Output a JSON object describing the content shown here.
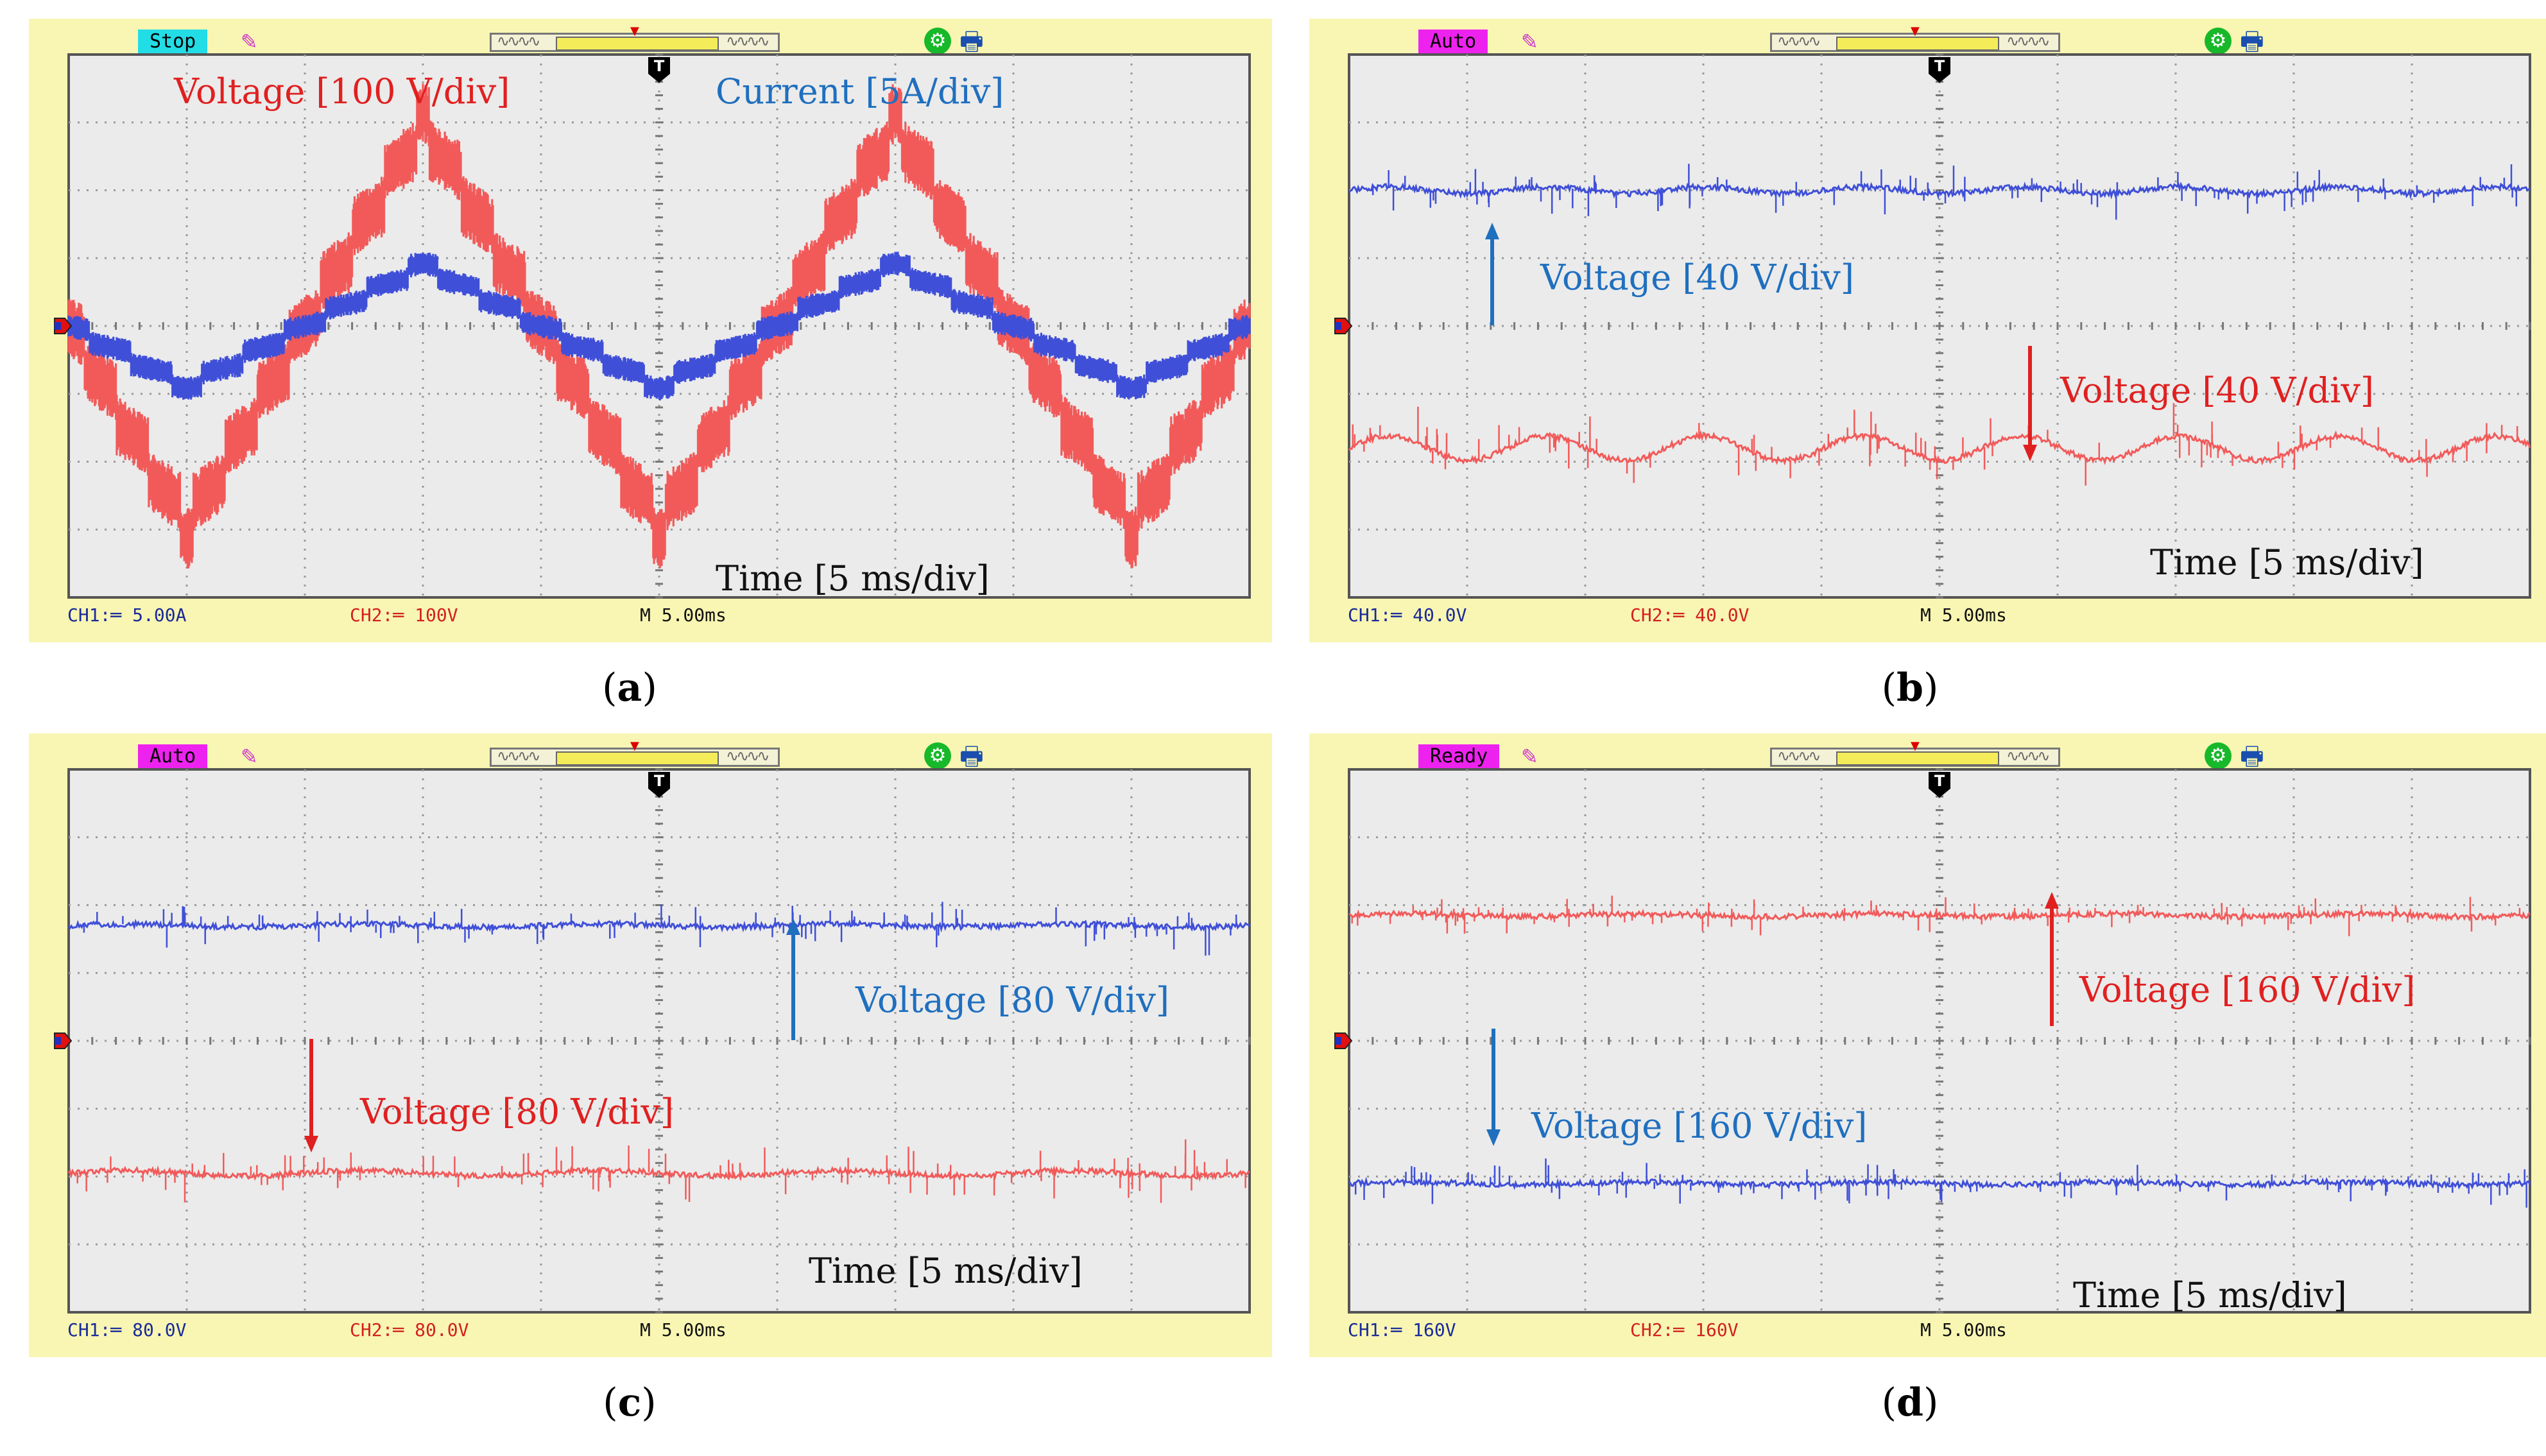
{
  "colors": {
    "ch1": "#3f4fd8",
    "ch2": "#f25a5a",
    "grid": "#9a9a9a",
    "panel_bg": "#f8f6b2",
    "screen_bg": "#ebebeb",
    "annotation_red": "#e02020",
    "annotation_blue": "#1f6fbf"
  },
  "chart_data": [
    {
      "type": "line",
      "panel_label": "a",
      "status": "Stop",
      "status_color": "#22dde6",
      "channels": {
        "ch1": "CH1:═ 5.00A",
        "ch2": "CH2:═ 100V",
        "timebase": "M 5.00ms"
      },
      "annotations": {
        "red": "Voltage [100 V/div]",
        "blue": "Current [5A/div]",
        "time": "Time [5 ms/div]"
      },
      "x": {
        "divisions": 10,
        "range_ms": [
          0,
          50
        ],
        "unit": "ms"
      },
      "y": {
        "divisions": 8,
        "range_div": [
          -4,
          4
        ]
      },
      "series": [
        {
          "name": "Voltage",
          "channel": "CH2",
          "color": "#f25a5a",
          "scale": "100 V/div",
          "offset_div": 0,
          "points_div": [
            [
              0,
              0
            ],
            [
              2.5,
              -1.5
            ],
            [
              5,
              -3
            ],
            [
              7.5,
              -1.5
            ],
            [
              10,
              0
            ],
            [
              12.5,
              1.5
            ],
            [
              15,
              3
            ],
            [
              17.5,
              1.5
            ],
            [
              20,
              0
            ],
            [
              22.5,
              -1.5
            ],
            [
              25,
              -3
            ],
            [
              27.5,
              -1.5
            ],
            [
              30,
              0
            ],
            [
              32.5,
              1.5
            ],
            [
              35,
              3
            ],
            [
              37.5,
              1.5
            ],
            [
              40,
              0
            ],
            [
              42.5,
              -1.5
            ],
            [
              45,
              -3
            ],
            [
              47.5,
              -1.5
            ],
            [
              50,
              0
            ]
          ],
          "band_div": 0.9
        },
        {
          "name": "Current",
          "channel": "CH1",
          "color": "#3f4fd8",
          "scale": "5A/div",
          "offset_div": 0,
          "points_div": [
            [
              0,
              0
            ],
            [
              2.5,
              -0.45
            ],
            [
              5,
              -0.9
            ],
            [
              7.5,
              -0.45
            ],
            [
              10,
              0
            ],
            [
              12.5,
              0.45
            ],
            [
              15,
              0.9
            ],
            [
              17.5,
              0.45
            ],
            [
              20,
              0
            ],
            [
              22.5,
              -0.45
            ],
            [
              25,
              -0.9
            ],
            [
              27.5,
              -0.45
            ],
            [
              30,
              0
            ],
            [
              32.5,
              0.45
            ],
            [
              35,
              0.9
            ],
            [
              37.5,
              0.45
            ],
            [
              40,
              0
            ],
            [
              42.5,
              -0.45
            ],
            [
              45,
              -0.9
            ],
            [
              47.5,
              -0.45
            ],
            [
              50,
              0
            ]
          ],
          "band_div": 0.35
        }
      ]
    },
    {
      "type": "line",
      "panel_label": "b",
      "status": "Auto",
      "status_color": "#ee22ee",
      "channels": {
        "ch1": "CH1:═ 40.0V",
        "ch2": "CH2:═ 40.0V",
        "timebase": "M 5.00ms"
      },
      "annotations": {
        "red": "Voltage [40 V/div]",
        "blue": "Voltage [40 V/div]",
        "time": "Time [5 ms/div]"
      },
      "x": {
        "divisions": 10,
        "range_ms": [
          0,
          50
        ],
        "unit": "ms"
      },
      "y": {
        "divisions": 8,
        "range_div": [
          -4,
          4
        ]
      },
      "series": [
        {
          "name": "Voltage (upper)",
          "channel": "CH1",
          "color": "#3f4fd8",
          "scale": "40 V/div",
          "offset_div": 2.0,
          "ripple_div": 0.05,
          "ripple_period_ms": 6.7,
          "spike_div": 0.45
        },
        {
          "name": "Voltage (lower)",
          "channel": "CH2",
          "color": "#f25a5a",
          "scale": "40 V/div",
          "offset_div": -1.8,
          "ripple_div": 0.18,
          "ripple_period_ms": 6.7,
          "spike_div": 0.6
        }
      ]
    },
    {
      "type": "line",
      "panel_label": "c",
      "status": "Auto",
      "status_color": "#ee22ee",
      "channels": {
        "ch1": "CH1:═ 80.0V",
        "ch2": "CH2:═ 80.0V",
        "timebase": "M 5.00ms"
      },
      "annotations": {
        "red": "Voltage [80 V/div]",
        "blue": "Voltage [80 V/div]",
        "time": "Time [5 ms/div]"
      },
      "x": {
        "divisions": 10,
        "range_ms": [
          0,
          50
        ],
        "unit": "ms"
      },
      "y": {
        "divisions": 8,
        "range_div": [
          -4,
          4
        ]
      },
      "series": [
        {
          "name": "Voltage (upper)",
          "channel": "CH1",
          "color": "#3f4fd8",
          "scale": "80 V/div",
          "offset_div": 1.7,
          "ripple_div": 0.02,
          "ripple_period_ms": 10,
          "spike_div": 0.45
        },
        {
          "name": "Voltage (lower)",
          "channel": "CH2",
          "color": "#f25a5a",
          "scale": "80 V/div",
          "offset_div": -1.95,
          "ripple_div": 0.04,
          "ripple_period_ms": 10,
          "spike_div": 0.55
        }
      ]
    },
    {
      "type": "line",
      "panel_label": "d",
      "status": "Ready",
      "status_color": "#ee22ee",
      "channels": {
        "ch1": "CH1:═ 160V",
        "ch2": "CH2:═ 160V",
        "timebase": "M 5.00ms"
      },
      "annotations": {
        "red": "Voltage [160 V/div]",
        "blue": "Voltage [160 V/div]",
        "time": "Time [5 ms/div]"
      },
      "x": {
        "divisions": 10,
        "range_ms": [
          0,
          50
        ],
        "unit": "ms"
      },
      "y": {
        "divisions": 8,
        "range_div": [
          -4,
          4
        ]
      },
      "series": [
        {
          "name": "Voltage (upper)",
          "channel": "CH2",
          "color": "#f25a5a",
          "scale": "160 V/div",
          "offset_div": 1.85,
          "ripple_div": 0.02,
          "ripple_period_ms": 10,
          "spike_div": 0.35
        },
        {
          "name": "Voltage (lower)",
          "channel": "CH1",
          "color": "#3f4fd8",
          "scale": "160 V/div",
          "offset_div": -2.1,
          "ripple_div": 0.02,
          "ripple_period_ms": 10,
          "spike_div": 0.4
        }
      ]
    }
  ]
}
